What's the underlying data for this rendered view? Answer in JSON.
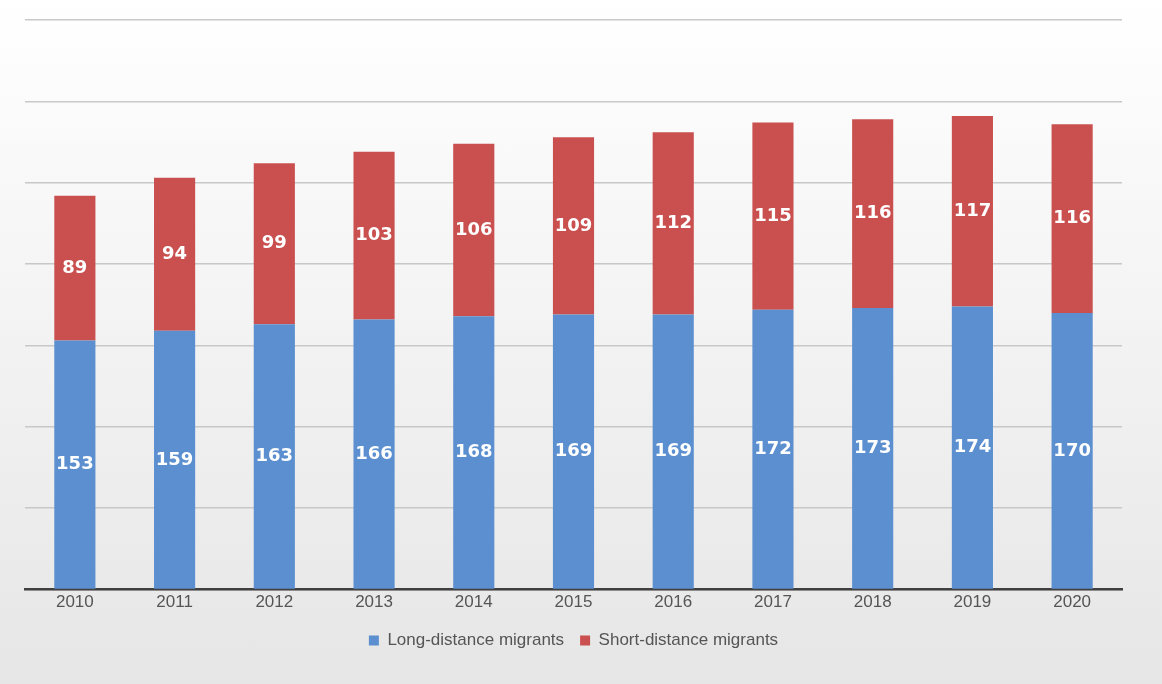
{
  "chart_data": {
    "type": "bar",
    "stacked": true,
    "categories": [
      "2010",
      "2011",
      "2012",
      "2013",
      "2014",
      "2015",
      "2016",
      "2017",
      "2018",
      "2019",
      "2020"
    ],
    "series": [
      {
        "name": "Long-distance migrants",
        "color": "#5b8fcf",
        "values": [
          153,
          159,
          163,
          166,
          168,
          169,
          169,
          172,
          173,
          174,
          170
        ]
      },
      {
        "name": "Short-distance migrants",
        "color": "#c9504f",
        "values": [
          89,
          94,
          99,
          103,
          106,
          109,
          112,
          115,
          116,
          117,
          116
        ]
      }
    ],
    "ylim": [
      0,
      350
    ],
    "yticks": [
      {
        "value": 0,
        "label": null
      },
      {
        "value": 50,
        "label": null
      },
      {
        "value": 100,
        "label": null
      },
      {
        "value": 150,
        "label": null
      },
      {
        "value": 200,
        "label": null
      },
      {
        "value": 250,
        "label": null
      },
      {
        "value": 300,
        "label": null
      },
      {
        "value": 350,
        "label": null
      }
    ],
    "tick_labels": "x",
    "grid": "y",
    "legend": "bottom",
    "data_labels": true
  }
}
